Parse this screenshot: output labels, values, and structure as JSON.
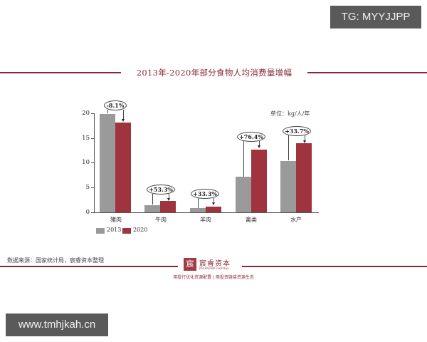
{
  "watermarks": {
    "top_right": "TG: MYYJJPP",
    "bottom_left": "www.tmhjkah.cn"
  },
  "header": {
    "title": "2013年-2020年部分食物人均消费量增幅"
  },
  "unit_label": "单位：kg/人/年",
  "colors": {
    "series_2013": "#9a9a9a",
    "series_2020": "#a0343e",
    "accent": "#8a2a34"
  },
  "chart_data": {
    "type": "bar",
    "title": "2013年-2020年部分食物人均消费量增幅",
    "xlabel": "",
    "ylabel": "单位：kg/人/年",
    "ylim": [
      0,
      20
    ],
    "yticks": [
      "0",
      "5",
      "10",
      "15",
      "20"
    ],
    "categories": [
      "猪肉",
      "牛肉",
      "羊肉",
      "禽类",
      "水产"
    ],
    "series": [
      {
        "name": "2013",
        "values": [
          19.8,
          1.5,
          0.9,
          7.2,
          10.4
        ]
      },
      {
        "name": "2020",
        "values": [
          18.2,
          2.3,
          1.2,
          12.7,
          13.9
        ]
      }
    ],
    "annotations": [
      "-8.1%",
      "+53.3%",
      "+33.3%",
      "+76.4%",
      "+33.7%"
    ],
    "legend": [
      "2013",
      "2020"
    ],
    "legend_position": "bottom-left",
    "grid": false
  },
  "footer": {
    "source": "数据来源：国家统计局，宸睿资本整理",
    "logo_glyph": "宸",
    "logo_name": "宸睿资本",
    "logo_sub": "PIONWISE CAPITAL",
    "slogan": "用投行优化资源配置 | 用投资链接资源生态"
  }
}
